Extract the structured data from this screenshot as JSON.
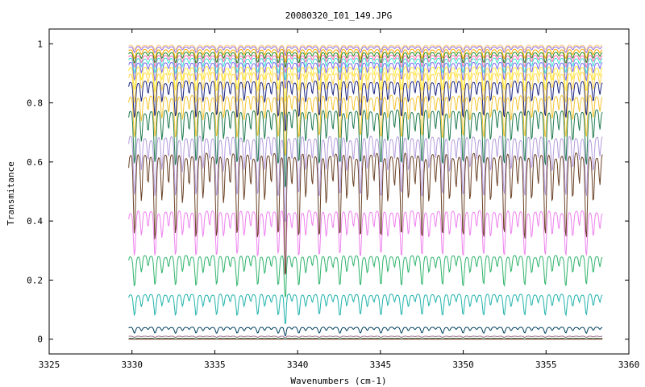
{
  "chart_data": {
    "type": "line",
    "title": "20080320_I01_149.JPG",
    "xlabel": "Wavenumbers (cm-1)",
    "ylabel": "Transmitance",
    "xlim": [
      3325,
      3360
    ],
    "ylim": [
      -0.05,
      1.05
    ],
    "x_ticks": [
      3325,
      3330,
      3335,
      3340,
      3345,
      3350,
      3355,
      3360
    ],
    "x_tick_labels": [
      "3325",
      "3330",
      "3335",
      "3340",
      "3345",
      "3350",
      "3355",
      "3360"
    ],
    "y_ticks": [
      0,
      0.2,
      0.4,
      0.6,
      0.8,
      1
    ],
    "y_tick_labels": [
      "0",
      "0.2",
      "0.4",
      "0.6",
      "0.8",
      "1"
    ],
    "grid": false,
    "legend": "none",
    "x_range": [
      3329.8,
      3358.4
    ],
    "series": [
      {
        "color": "#8b0000",
        "baseline": 0.0,
        "depth": 0.0
      },
      {
        "color": "#2e8b57",
        "baseline": 0.003,
        "depth": 0.002
      },
      {
        "color": "#9c6b8c",
        "baseline": 0.01,
        "depth": 0.004
      },
      {
        "color": "#003f5c",
        "baseline": 0.04,
        "depth": 0.02
      },
      {
        "color": "#20b2aa",
        "baseline": 0.15,
        "depth": 0.07
      },
      {
        "color": "#2fb36b",
        "baseline": 0.28,
        "depth": 0.1
      },
      {
        "color": "#ee82ee",
        "baseline": 0.43,
        "depth": 0.15
      },
      {
        "color": "#6b4226",
        "baseline": 0.62,
        "depth": 0.28
      },
      {
        "color": "#b39ddb",
        "baseline": 0.68,
        "depth": 0.2
      },
      {
        "color": "#1f7a4f",
        "baseline": 0.77,
        "depth": 0.18
      },
      {
        "color": "#f4c430",
        "baseline": 0.82,
        "depth": 0.14
      },
      {
        "color": "#1a237e",
        "baseline": 0.87,
        "depth": 0.12
      },
      {
        "color": "#ffd54f",
        "baseline": 0.9,
        "depth": 0.1
      },
      {
        "color": "#ffeb3b",
        "baseline": 0.92,
        "depth": 0.08
      },
      {
        "color": "#7b68ee",
        "baseline": 0.935,
        "depth": 0.06
      },
      {
        "color": "#40e0d0",
        "baseline": 0.95,
        "depth": 0.05
      },
      {
        "color": "#ff69b4",
        "baseline": 0.96,
        "depth": 0.04
      },
      {
        "color": "#228b22",
        "baseline": 0.97,
        "depth": 0.035
      },
      {
        "color": "#ffa500",
        "baseline": 0.98,
        "depth": 0.03
      },
      {
        "color": "#9370db",
        "baseline": 0.99,
        "depth": 0.02
      },
      {
        "color": "#ffcc80",
        "baseline": 0.995,
        "depth": 0.015
      }
    ]
  }
}
